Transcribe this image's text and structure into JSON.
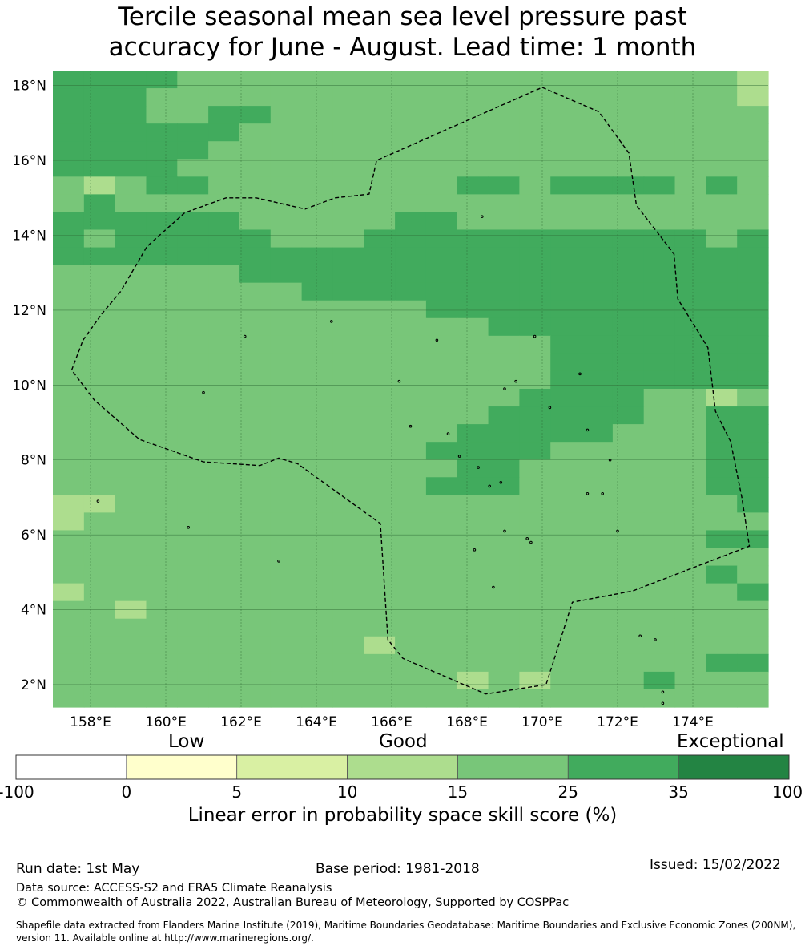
{
  "title_line1": "Tercile seasonal mean sea level pressure past",
  "title_line2": "accuracy for June - August. Lead time: 1 month",
  "map": {
    "lon_min": 157.0,
    "lon_max": 176.0,
    "lat_min": 1.4,
    "lat_max": 18.4,
    "lon_ticks": [
      {
        "value": 158,
        "label": "158°E"
      },
      {
        "value": 160,
        "label": "160°E"
      },
      {
        "value": 162,
        "label": "162°E"
      },
      {
        "value": 164,
        "label": "164°E"
      },
      {
        "value": 166,
        "label": "166°E"
      },
      {
        "value": 168,
        "label": "168°E"
      },
      {
        "value": 170,
        "label": "170°E"
      },
      {
        "value": 172,
        "label": "172°E"
      },
      {
        "value": 174,
        "label": "174°E"
      }
    ],
    "lat_ticks": [
      {
        "value": 18,
        "label": "18°N"
      },
      {
        "value": 16,
        "label": "16°N"
      },
      {
        "value": 14,
        "label": "14°N"
      },
      {
        "value": 12,
        "label": "12°N"
      },
      {
        "value": 10,
        "label": "10°N"
      },
      {
        "value": 8,
        "label": "8°N"
      },
      {
        "value": 6,
        "label": "6°N"
      },
      {
        "value": 4,
        "label": "4°N"
      },
      {
        "value": 2,
        "label": "2°N"
      }
    ],
    "cell_colors": {
      "15-25": "#78c679",
      "25-35": "#41ab5d",
      "10-15": "#addd8e"
    },
    "skill_rows": [
      "FFFFGGGGGGGGGGGGGGGGGGH",
      "FFFGGGGGGGGGGGGGGGGGGGH",
      "FFFGGFFGGGGGGGGGGGGGGGG",
      "FFFFFFGGGGGGGGGGGGGGGGG",
      "FFFFFGGGGGGGGGGGGGGGGGG",
      "FFFFGGGGGGGGGGGGGGGGGGG",
      "GHGFFGGGGGGGGFFGFFFFGFG",
      "GFGGGGGGGGGGGGGGGGGGGGG",
      "FFFFFFGGGGGFFGGGGGGGGGG",
      "FGFFFFFGGGFFFFFFFFFFFGF",
      "FFFFFFFFFFFFFFFFFFFFFFF",
      "GGGGGGFFFFFFFFFFFFFFFFF",
      "GGGGGGGGFFFFFFFFFFFFFFF",
      "GGGGGGGGGGGGFFFFFFFFFFF",
      "GGGGGGGGGGGGGGFFFFFFFFF",
      "GGGGGGGGGGGGGGGGFFFFFFF",
      "GGGGGGGGGGGGGGGGFFFFFFF",
      "GGGGGGGGGGGGGGGGFFFFFFF",
      "GGGGGGGGGGGGGGGFFFFGGHG",
      "GGGGGGGGGGGGGGFFFFFGGFF",
      "GGGGGGGGGGGGGFFFFFGGGFF",
      "GGGGGGGGGGGGFFFFGGGGGFF",
      "GGGGGGGGGGGGGFFGGGGGGFF",
      "GGGGGGGGGGGGFFFGGGGGGFF",
      "HHGGGGGGGGGGGGGGGGGGGGF",
      "HGGGGGGGGGGGGGGGGGGGGGG",
      "GGGGGGGGGGGGGGGGGGGGGFF",
      "GGGGGGGGGGGGGGGGGGGGGGG",
      "GGGGGGGGGGGGGGGGGGGGGFG",
      "HGGGGGGGGGGGGGGGGGGGGGF",
      "GGHGGGGGGGGGGGGGGGGGGGG",
      "GGGGGGGGGGGGGGGGGGGGGGG",
      "GGGGGGGGGGHGGGGGGGGGGGG",
      "GGGGGGGGGGGGGGGGGGGGGFF",
      "GGGGGGGGGGGGGHGHGGGFGGG",
      "GGGGGGGGGGGGGGGGGGGGGGG"
    ],
    "eez_boundary": [
      [
        170.0,
        17.95
      ],
      [
        171.5,
        17.3
      ],
      [
        172.3,
        16.2
      ],
      [
        172.5,
        14.8
      ],
      [
        173.5,
        13.5
      ],
      [
        173.6,
        12.3
      ],
      [
        174.4,
        11.0
      ],
      [
        174.6,
        9.3
      ],
      [
        175.0,
        8.5
      ],
      [
        175.3,
        7.0
      ],
      [
        175.5,
        5.7
      ],
      [
        172.4,
        4.5
      ],
      [
        170.8,
        4.2
      ],
      [
        170.1,
        2.0
      ],
      [
        168.5,
        1.75
      ],
      [
        166.3,
        2.7
      ],
      [
        165.9,
        3.2
      ],
      [
        165.7,
        6.3
      ],
      [
        163.5,
        7.9
      ],
      [
        163.0,
        8.05
      ],
      [
        162.5,
        7.85
      ],
      [
        161.0,
        7.95
      ],
      [
        159.3,
        8.55
      ],
      [
        158.1,
        9.6
      ],
      [
        157.5,
        10.4
      ],
      [
        157.8,
        11.2
      ],
      [
        158.3,
        11.9
      ],
      [
        158.8,
        12.5
      ],
      [
        159.5,
        13.7
      ],
      [
        160.5,
        14.6
      ],
      [
        161.6,
        15.0
      ],
      [
        162.4,
        15.0
      ],
      [
        163.7,
        14.7
      ],
      [
        164.5,
        15.0
      ],
      [
        165.4,
        15.1
      ],
      [
        165.6,
        16.0
      ],
      [
        170.0,
        17.95
      ]
    ],
    "islands": [
      [
        158.2,
        6.9
      ],
      [
        160.6,
        6.2
      ],
      [
        163.0,
        5.3
      ],
      [
        161.0,
        9.8
      ],
      [
        162.1,
        11.3
      ],
      [
        164.4,
        11.7
      ],
      [
        166.2,
        10.1
      ],
      [
        166.5,
        8.9
      ],
      [
        167.5,
        8.7
      ],
      [
        167.8,
        8.1
      ],
      [
        168.3,
        7.8
      ],
      [
        168.6,
        7.3
      ],
      [
        168.9,
        7.4
      ],
      [
        169.0,
        6.1
      ],
      [
        168.2,
        5.6
      ],
      [
        168.7,
        4.6
      ],
      [
        169.6,
        5.9
      ],
      [
        169.7,
        5.8
      ],
      [
        171.2,
        7.1
      ],
      [
        171.6,
        7.1
      ],
      [
        172.0,
        6.1
      ],
      [
        171.8,
        8.0
      ],
      [
        171.2,
        8.8
      ],
      [
        170.2,
        9.4
      ],
      [
        169.3,
        10.1
      ],
      [
        169.0,
        9.9
      ],
      [
        169.8,
        11.3
      ],
      [
        167.2,
        11.2
      ],
      [
        173.0,
        3.2
      ],
      [
        173.2,
        1.8
      ],
      [
        173.2,
        1.5
      ],
      [
        172.6,
        3.3
      ],
      [
        168.4,
        14.5
      ],
      [
        171.0,
        10.3
      ]
    ]
  },
  "colorbar": {
    "segments": [
      {
        "color": "#ffffff",
        "from_label": "-100"
      },
      {
        "color": "#ffffcc",
        "from_label": "0"
      },
      {
        "color": "#d9f0a3",
        "from_label": "5"
      },
      {
        "color": "#addd8e",
        "from_label": "10"
      },
      {
        "color": "#78c679",
        "from_label": "15"
      },
      {
        "color": "#41ab5d",
        "from_label": "25"
      },
      {
        "color": "#238443",
        "from_label": "35"
      }
    ],
    "end_label": "100",
    "category_low": "Low",
    "category_good": "Good",
    "category_exceptional": "Exceptional",
    "title": "Linear error in probability space skill score (%)"
  },
  "footer": {
    "run_date": "Run date: 1st May",
    "base_period": "Base period: 1981-2018",
    "issued": "Issued: 15/02/2022",
    "data_source": "Data source: ACCESS-S2 and ERA5 Climate Reanalysis",
    "copyright": "© Commonwealth of Australia 2022, Australian Bureau of Meteorology, Supported by COSPPac",
    "shapefile_line1": "Shapefile data extracted from Flanders Marine Institute (2019), Maritime Boundaries Geodatabase: Maritime Boundaries and Exclusive Economic Zones (200NM),",
    "shapefile_line2": "version 11. Available online at http://www.marineregions.org/."
  }
}
